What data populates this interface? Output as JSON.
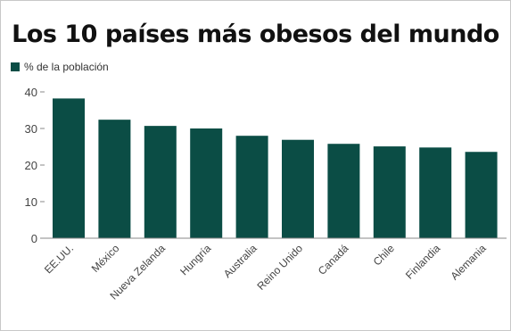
{
  "colors": {
    "bar": "#0b4d45",
    "axis": "#888888",
    "text": "#444444"
  },
  "chart_data": {
    "type": "bar",
    "title": "Los 10 países más obesos del mundo",
    "categories": [
      "EE.UU.",
      "México",
      "Nueva Zelanda",
      "Hungría",
      "Australia",
      "Reino Unido",
      "Canadá",
      "Chile",
      "Finlandia",
      "Alemania"
    ],
    "series": [
      {
        "name": "% de la población",
        "values": [
          38.2,
          32.4,
          30.7,
          30.0,
          28.0,
          26.9,
          25.8,
          25.1,
          24.8,
          23.6
        ]
      }
    ],
    "yticks": [
      "0",
      "10",
      "20",
      "30",
      "40"
    ],
    "ylim": [
      0,
      40
    ],
    "grid": false,
    "legend_position": "top-left"
  }
}
